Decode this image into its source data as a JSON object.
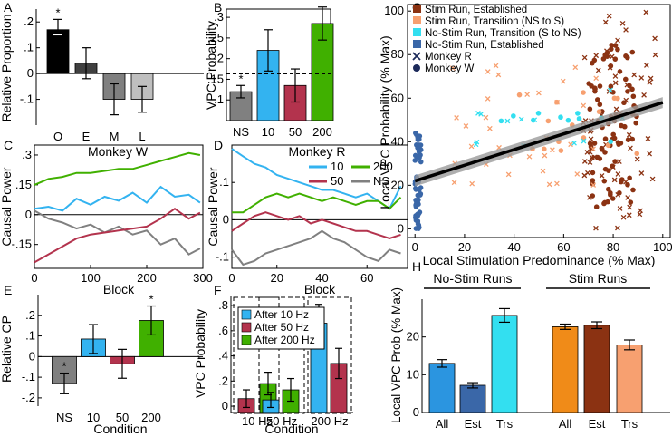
{
  "chart_data": [
    {
      "panel": "A",
      "type": "bar",
      "ylabel": "Relative Proportion",
      "categories": [
        "O",
        "E",
        "M",
        "L"
      ],
      "values": [
        0.17,
        0.04,
        -0.1,
        -0.1
      ],
      "errors": [
        0.04,
        0.06,
        0.06,
        0.05
      ],
      "colors": [
        "#000000",
        "#404040",
        "#808080",
        "#bfbfbf"
      ],
      "ylim": [
        -0.2,
        0.25
      ],
      "yticks": [
        -0.1,
        0,
        0.1,
        0.2
      ],
      "ytick_labels": [
        "-.1",
        "0",
        ".1",
        ".2"
      ],
      "significance": [
        {
          "index": 0,
          "mark": "*"
        }
      ]
    },
    {
      "panel": "B",
      "type": "bar",
      "ylabel": "VPC Probability",
      "categories": [
        "NS",
        "10",
        "50",
        "200"
      ],
      "values": [
        0.12,
        0.22,
        0.135,
        0.285
      ],
      "errors": [
        0.015,
        0.05,
        0.04,
        0.04
      ],
      "colors": [
        "#808080",
        "#33b3f0",
        "#b3334d",
        "#40b000"
      ],
      "ylim": [
        0.05,
        0.32
      ],
      "yticks": [
        0.1,
        0.15,
        0.2,
        0.25,
        0.3
      ],
      "ytick_labels": [
        ".1",
        ".15",
        ".2",
        ".25",
        ".3"
      ],
      "reference_line": 0.163,
      "significance": [
        {
          "index": 0,
          "mark": "*"
        },
        {
          "index": 3,
          "mark": "*"
        }
      ]
    },
    {
      "panel": "C",
      "type": "line",
      "title": "Monkey W",
      "xlabel": "Block",
      "ylabel": "Causal Power",
      "xlim": [
        0,
        300
      ],
      "ylim": [
        -0.27,
        0.35
      ],
      "xticks": [
        0,
        100,
        200,
        300
      ],
      "yticks": [
        -0.15,
        0,
        0.15,
        0.3
      ],
      "ytick_labels": [
        "-.15",
        "0",
        ".15",
        ".3"
      ],
      "series": [
        {
          "name": "200",
          "color": "#40b000",
          "x": [
            0,
            25,
            50,
            75,
            100,
            125,
            150,
            175,
            200,
            225,
            250,
            275,
            295
          ],
          "y": [
            0.15,
            0.18,
            0.19,
            0.21,
            0.21,
            0.22,
            0.23,
            0.23,
            0.25,
            0.27,
            0.29,
            0.31,
            0.3
          ]
        },
        {
          "name": "10",
          "color": "#33b3f0",
          "x": [
            0,
            25,
            50,
            75,
            100,
            125,
            150,
            175,
            200,
            225,
            250,
            275,
            295
          ],
          "y": [
            0.03,
            0.04,
            0.02,
            0.08,
            0.05,
            0.09,
            0.07,
            0.11,
            0.06,
            0.14,
            0.09,
            0.1,
            0.06
          ]
        },
        {
          "name": "NS",
          "color": "#808080",
          "x": [
            0,
            25,
            50,
            75,
            100,
            125,
            150,
            175,
            200,
            225,
            250,
            275,
            295
          ],
          "y": [
            0.02,
            -0.02,
            -0.04,
            -0.07,
            -0.05,
            -0.09,
            -0.06,
            -0.1,
            -0.08,
            -0.15,
            -0.12,
            -0.2,
            -0.17
          ]
        },
        {
          "name": "50",
          "color": "#b3334d",
          "x": [
            0,
            25,
            50,
            75,
            100,
            125,
            150,
            175,
            200,
            225,
            250,
            275,
            295
          ],
          "y": [
            -0.24,
            -0.2,
            -0.16,
            -0.12,
            -0.1,
            -0.09,
            -0.08,
            -0.07,
            -0.06,
            -0.02,
            0.03,
            -0.02,
            0.01
          ]
        }
      ]
    },
    {
      "panel": "D",
      "type": "line",
      "title": "Monkey R",
      "xlabel": "Block",
      "ylabel": "Causal Power",
      "xlim": [
        0,
        78
      ],
      "ylim": [
        -0.13,
        0.2
      ],
      "xticks": [
        0,
        20,
        40,
        60
      ],
      "yticks": [
        -0.1,
        0,
        0.1
      ],
      "ytick_labels": [
        "-.1",
        "0",
        ".1"
      ],
      "legend": [
        "10",
        "200",
        "50",
        "NS"
      ],
      "series": [
        {
          "name": "10",
          "color": "#33b3f0",
          "x": [
            0,
            5,
            10,
            15,
            20,
            25,
            30,
            35,
            40,
            45,
            50,
            55,
            60,
            65,
            70,
            75
          ],
          "y": [
            0.19,
            0.17,
            0.15,
            0.14,
            0.12,
            0.11,
            0.1,
            0.09,
            0.08,
            0.08,
            0.07,
            0.06,
            0.07,
            0.05,
            0.03,
            0.09
          ]
        },
        {
          "name": "200",
          "color": "#40b000",
          "x": [
            0,
            5,
            10,
            15,
            20,
            25,
            30,
            35,
            40,
            45,
            50,
            55,
            60,
            65,
            70,
            75
          ],
          "y": [
            0.02,
            0.02,
            0.04,
            0.06,
            0.07,
            0.06,
            0.07,
            0.06,
            0.05,
            0.06,
            0.05,
            0.04,
            0.05,
            0.05,
            0.03,
            0.06
          ]
        },
        {
          "name": "50",
          "color": "#b3334d",
          "x": [
            0,
            5,
            10,
            15,
            20,
            25,
            30,
            35,
            40,
            45,
            50,
            55,
            60,
            65,
            70,
            75
          ],
          "y": [
            -0.03,
            -0.01,
            0.01,
            0.02,
            0.01,
            0.0,
            0.01,
            -0.01,
            0.0,
            -0.01,
            -0.02,
            -0.03,
            -0.03,
            -0.04,
            -0.05,
            -0.04
          ]
        },
        {
          "name": "NS",
          "color": "#808080",
          "x": [
            0,
            5,
            10,
            15,
            20,
            25,
            30,
            35,
            40,
            45,
            50,
            55,
            60,
            65,
            70,
            75
          ],
          "y": [
            -0.08,
            -0.12,
            -0.11,
            -0.09,
            -0.08,
            -0.07,
            -0.06,
            -0.05,
            -0.03,
            -0.05,
            -0.06,
            -0.08,
            -0.1,
            -0.11,
            -0.08,
            -0.09
          ]
        }
      ]
    },
    {
      "panel": "E",
      "type": "bar",
      "xlabel": "Condition",
      "ylabel": "Relative CP",
      "categories": [
        "NS",
        "10",
        "50",
        "200"
      ],
      "values": [
        -0.13,
        0.085,
        -0.035,
        0.175
      ],
      "errors": [
        0.05,
        0.07,
        0.07,
        0.07
      ],
      "colors": [
        "#808080",
        "#33b3f0",
        "#b3334d",
        "#40b000"
      ],
      "ylim": [
        -0.24,
        0.3
      ],
      "yticks": [
        -0.2,
        -0.1,
        0,
        0.1,
        0.2
      ],
      "ytick_labels": [
        "-.2",
        "-.1",
        "0",
        ".1",
        ".2"
      ],
      "significance": [
        {
          "index": 0,
          "mark": "*"
        },
        {
          "index": 3,
          "mark": "*"
        }
      ]
    },
    {
      "panel": "F",
      "type": "bar",
      "xlabel": "Condition",
      "ylabel": "VPC Probability",
      "categories": [
        "10 Hz",
        "50 Hz",
        "200 Hz"
      ],
      "series": [
        {
          "name": "After 10 Hz",
          "color": "#33b3f0",
          "values": [
            null,
            0.05,
            0.66
          ],
          "errors": [
            null,
            0.06,
            0.15
          ]
        },
        {
          "name": "After 50 Hz",
          "color": "#b3334d",
          "values": [
            0.06,
            null,
            0.34
          ],
          "errors": [
            0.07,
            null,
            0.12
          ]
        },
        {
          "name": "After 200 Hz",
          "color": "#40b000",
          "values": [
            0.18,
            0.13,
            null
          ],
          "errors": [
            0.09,
            0.09,
            null
          ]
        }
      ],
      "ylim": [
        -0.05,
        0.88
      ],
      "yticks": [
        0,
        0.2,
        0.4,
        0.6,
        0.8
      ],
      "ytick_labels": [
        "0",
        ".2",
        ".4",
        ".6",
        ".8"
      ]
    },
    {
      "panel": "G",
      "type": "scatter",
      "xlabel": "Local Stimulation Predominance (% Max)",
      "ylabel": "Local VPC Probability (% Max)",
      "xlim": [
        -3,
        103
      ],
      "ylim": [
        -4,
        103
      ],
      "xticks": [
        0,
        20,
        40,
        60,
        80,
        100
      ],
      "yticks": [
        0,
        20,
        40,
        60,
        80,
        100
      ],
      "legend": [
        "Stim Run, Established",
        "Stim Run, Transition (NS to S)",
        "No-Stim Run, Transition (S to NS)",
        "No-Stim Run, Established",
        "Monkey R",
        "Monkey W"
      ],
      "regression": {
        "x": [
          0,
          100
        ],
        "y": [
          22,
          58
        ],
        "color": "#000000"
      }
    },
    {
      "panel": "H",
      "type": "bar",
      "ylabel": "Local VPC Prob (% Max)",
      "group_labels": [
        "No-Stim Runs",
        "Stim Runs"
      ],
      "categories": [
        "All",
        "Est",
        "Trs",
        "All",
        "Est",
        "Trs"
      ],
      "values": [
        13,
        7.2,
        25.7,
        22.7,
        23.1,
        17.9
      ],
      "errors": [
        1.0,
        0.7,
        1.8,
        0.7,
        0.9,
        1.3
      ],
      "colors": [
        "#2b95e0",
        "#3a67a8",
        "#33dff0",
        "#f08b18",
        "#8b3212",
        "#f7a070"
      ],
      "ylim": [
        0,
        30
      ],
      "yticks": [
        0,
        10,
        20
      ],
      "ytick_labels": [
        "0",
        "10",
        "20"
      ]
    }
  ],
  "labels": {
    "panel_A": "A",
    "panel_B": "B",
    "panel_C": "C",
    "panel_D": "D",
    "panel_E": "E",
    "panel_F": "F",
    "panel_G": "G",
    "panel_H": "H",
    "star": "*"
  }
}
